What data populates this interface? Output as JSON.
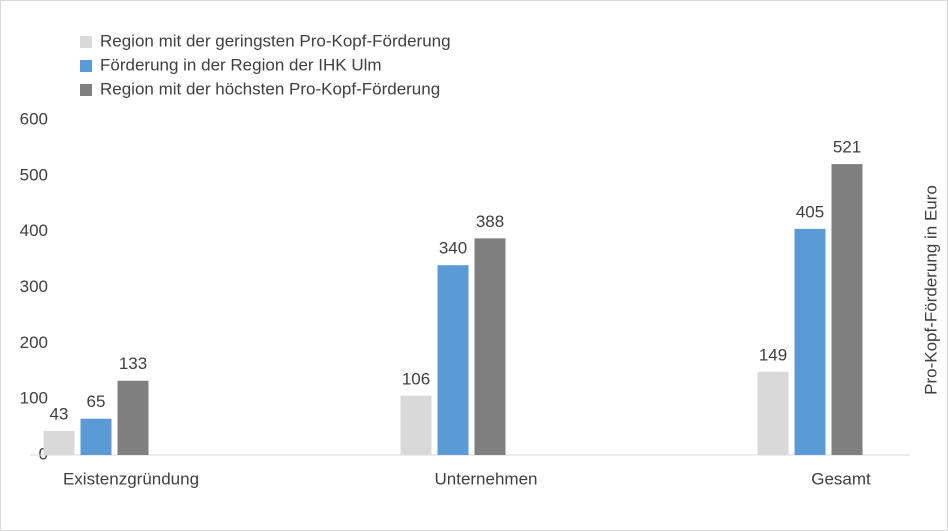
{
  "chart_data": {
    "type": "bar",
    "y_axis_label": "Pro-Kopf-Förderung in Euro",
    "categories": [
      "Existenzgründung",
      "Unternehmen",
      "Gesamt"
    ],
    "series": [
      {
        "name": "Region mit der geringsten Pro-Kopf-Förderung",
        "color": "#d9d9d9",
        "values": [
          43,
          106,
          149
        ]
      },
      {
        "name": "Förderung in der Region der IHK Ulm",
        "color": "#5b9bd5",
        "values": [
          65,
          340,
          405
        ]
      },
      {
        "name": "Region mit der höchsten Pro-Kopf-Förderung",
        "color": "#7f7f7f",
        "values": [
          133,
          388,
          521
        ]
      }
    ],
    "ylim": [
      0,
      600
    ],
    "yticks": [
      0,
      100,
      200,
      300,
      400,
      500,
      600
    ],
    "grid": false,
    "legend": "top-left"
  }
}
